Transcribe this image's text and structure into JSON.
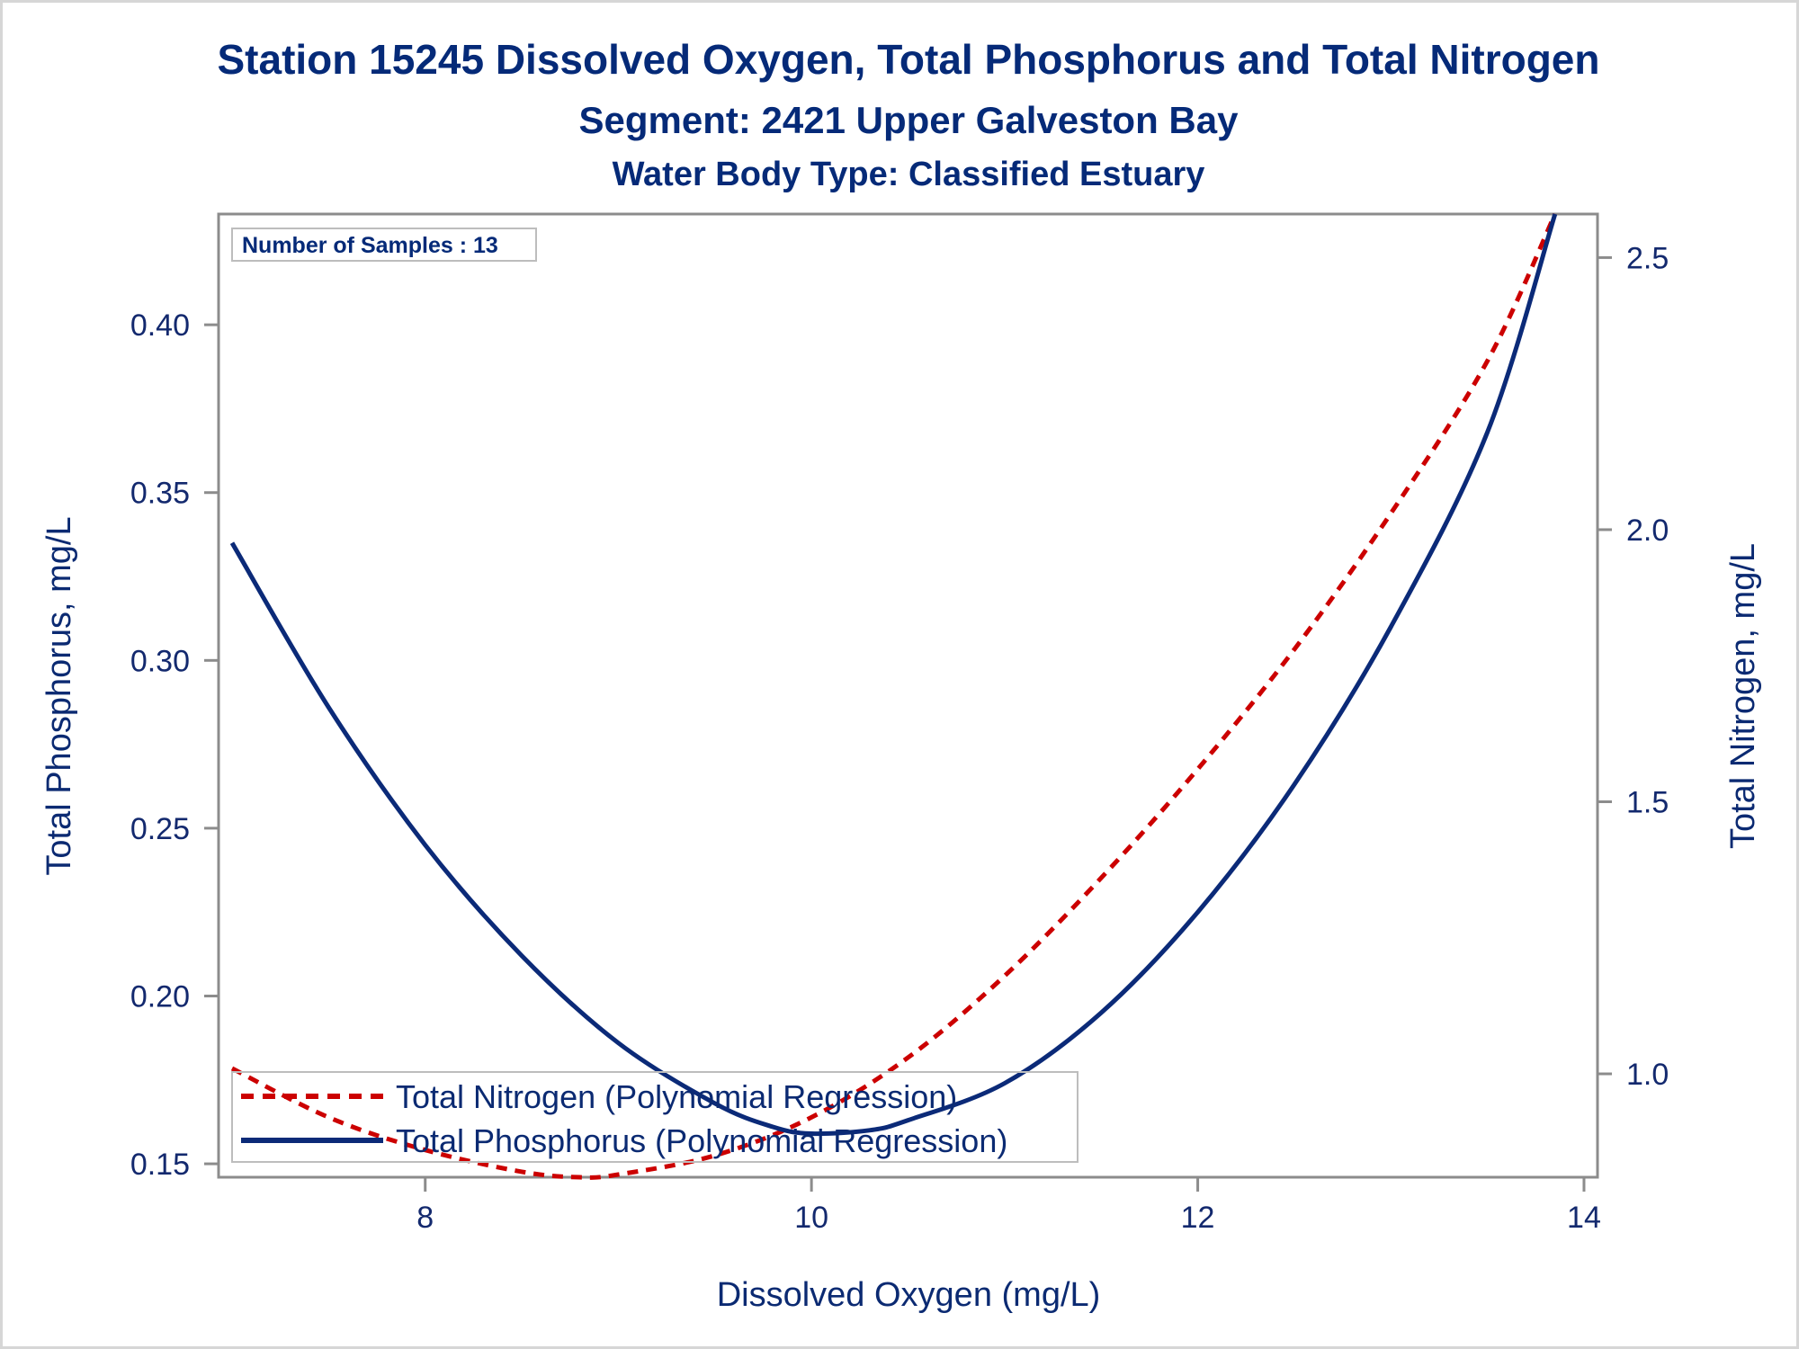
{
  "chart_data": {
    "type": "line",
    "title": "Station 15245  Dissolved Oxygen, Total Phosphorus and Total Nitrogen",
    "subtitle": "Segment: 2421  Upper Galveston Bay",
    "subtitle2": "Water Body Type: Classified Estuary",
    "xlabel": "Dissolved Oxygen (mg/L)",
    "ylabel_left": "Total Phosphorus, mg/L",
    "ylabel_right": "Total Nitrogen, mg/L",
    "x_ticks": [
      "8",
      "10",
      "12",
      "14"
    ],
    "x_tick_values": [
      8,
      10,
      12,
      14
    ],
    "y_left_ticks": [
      "0.15",
      "0.20",
      "0.25",
      "0.30",
      "0.35",
      "0.40"
    ],
    "y_left_tick_values": [
      0.15,
      0.2,
      0.25,
      0.3,
      0.35,
      0.4
    ],
    "y_right_ticks": [
      "1.0",
      "1.5",
      "2.0",
      "2.5"
    ],
    "y_right_tick_values": [
      1.0,
      1.5,
      2.0,
      2.5
    ],
    "xlim": [
      6.93,
      14.07
    ],
    "ylim_left": [
      0.146,
      0.433
    ],
    "ylim_right": [
      0.81,
      2.58
    ],
    "grid": false,
    "legend_position": "bottom-left",
    "inset_label": "Number of Samples : 13",
    "series": [
      {
        "name": "Total Nitrogen (Polynomial Regression)",
        "axis": "right",
        "style": "dashed",
        "color": "#cc0000",
        "x": [
          7.0,
          7.5,
          8.0,
          8.5,
          8.8,
          9.0,
          9.5,
          10.0,
          10.5,
          11.0,
          11.5,
          12.0,
          12.5,
          13.0,
          13.5,
          13.85
        ],
        "y": [
          1.01,
          0.92,
          0.86,
          0.82,
          0.81,
          0.815,
          0.85,
          0.92,
          1.03,
          1.18,
          1.36,
          1.56,
          1.78,
          2.03,
          2.31,
          2.58
        ]
      },
      {
        "name": "Total Phosphorus (Polynomial Regression)",
        "axis": "left",
        "style": "solid",
        "color": "#0b2a78",
        "x": [
          7.0,
          7.5,
          8.0,
          8.5,
          9.0,
          9.5,
          9.8,
          10.0,
          10.3,
          10.5,
          11.0,
          11.5,
          12.0,
          12.5,
          13.0,
          13.5,
          13.85
        ],
        "y": [
          0.335,
          0.286,
          0.245,
          0.212,
          0.186,
          0.168,
          0.161,
          0.159,
          0.16,
          0.163,
          0.174,
          0.195,
          0.225,
          0.263,
          0.31,
          0.368,
          0.433
        ]
      }
    ]
  }
}
